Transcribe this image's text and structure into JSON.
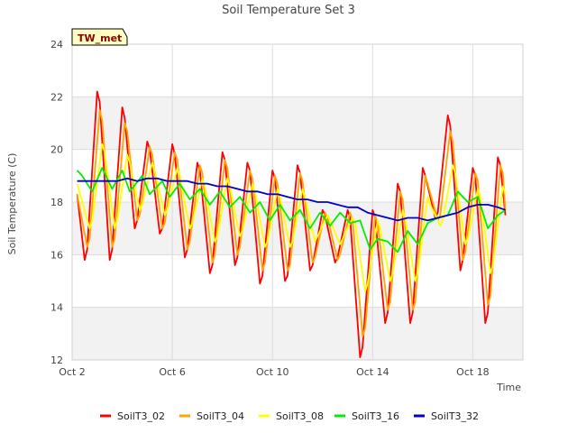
{
  "chart_data": {
    "type": "line",
    "title": "Soil Temperature Set 3",
    "xlabel": "Time",
    "ylabel": "Soil Temperature (C)",
    "xlim": [
      "Oct 2",
      "Oct 20"
    ],
    "ylim": [
      12,
      24
    ],
    "yticks": [
      12,
      14,
      16,
      18,
      20,
      22,
      24
    ],
    "xticks": [
      "Oct 2",
      "Oct 6",
      "Oct 10",
      "Oct 14",
      "Oct 18"
    ],
    "grid": true,
    "legend_position": "bottom",
    "site_badge": "TW_met",
    "x_unit": "day of October",
    "series": [
      {
        "name": "SoilT3_02",
        "color": "#ff0000",
        "x": [
          2.2,
          2.5,
          2.6,
          3.0,
          3.1,
          3.5,
          3.6,
          4.0,
          4.1,
          4.5,
          4.6,
          5.0,
          5.1,
          5.5,
          5.6,
          6.0,
          6.1,
          6.5,
          6.6,
          7.0,
          7.1,
          7.5,
          7.6,
          8.0,
          8.1,
          8.5,
          8.6,
          9.0,
          9.1,
          9.5,
          9.6,
          10.0,
          10.1,
          10.5,
          10.6,
          11.0,
          11.1,
          11.5,
          11.6,
          12.0,
          12.1,
          12.5,
          12.6,
          13.0,
          13.1,
          13.5,
          13.6,
          14.0,
          14.1,
          14.5,
          14.6,
          15.0,
          15.1,
          15.5,
          15.6,
          16.0,
          16.1,
          16.5,
          16.6,
          17.0,
          17.1,
          17.5,
          17.6,
          18.0,
          18.1,
          18.5,
          18.6,
          19.0,
          19.1,
          19.3
        ],
        "y": [
          18.3,
          15.8,
          16.2,
          22.2,
          21.8,
          15.8,
          16.2,
          21.6,
          21.2,
          17.0,
          17.3,
          20.3,
          20.0,
          16.8,
          17.0,
          20.2,
          19.8,
          15.9,
          16.2,
          19.5,
          19.2,
          15.3,
          15.6,
          19.9,
          19.6,
          15.6,
          15.9,
          19.5,
          19.2,
          14.9,
          15.2,
          19.2,
          18.9,
          15.0,
          15.2,
          19.4,
          19.1,
          15.4,
          15.6,
          17.7,
          17.5,
          15.7,
          15.9,
          17.7,
          17.4,
          12.1,
          12.5,
          17.7,
          17.4,
          13.4,
          13.8,
          18.7,
          18.4,
          13.4,
          13.8,
          19.3,
          19.0,
          17.4,
          17.6,
          21.3,
          20.9,
          15.4,
          15.8,
          19.3,
          19.0,
          13.4,
          13.8,
          19.7,
          19.4,
          17.5
        ]
      },
      {
        "name": "SoilT3_04",
        "color": "#ffa500",
        "x": [
          2.2,
          2.6,
          2.7,
          3.1,
          3.2,
          3.6,
          3.7,
          4.1,
          4.2,
          4.6,
          4.7,
          5.1,
          5.2,
          5.6,
          5.7,
          6.1,
          6.2,
          6.6,
          6.7,
          7.1,
          7.2,
          7.6,
          7.7,
          8.1,
          8.2,
          8.6,
          8.7,
          9.1,
          9.2,
          9.6,
          9.7,
          10.1,
          10.2,
          10.6,
          10.7,
          11.1,
          11.2,
          11.6,
          11.7,
          12.1,
          12.2,
          12.6,
          12.7,
          13.1,
          13.2,
          13.6,
          13.7,
          14.1,
          14.2,
          14.6,
          14.7,
          15.1,
          15.2,
          15.6,
          15.7,
          16.1,
          16.2,
          16.6,
          16.7,
          17.1,
          17.2,
          17.6,
          17.7,
          18.1,
          18.2,
          18.6,
          18.7,
          19.1,
          19.2,
          19.3
        ],
        "y": [
          18.3,
          16.3,
          16.6,
          21.5,
          21.1,
          16.3,
          16.6,
          21.0,
          20.7,
          17.3,
          17.5,
          20.1,
          19.8,
          17.0,
          17.2,
          19.9,
          19.6,
          16.2,
          16.5,
          19.4,
          19.1,
          15.7,
          16.0,
          19.6,
          19.3,
          16.0,
          16.3,
          19.2,
          18.9,
          15.4,
          15.7,
          19.0,
          18.7,
          15.4,
          15.6,
          19.1,
          18.8,
          15.7,
          15.9,
          17.6,
          17.4,
          15.8,
          16.0,
          17.6,
          17.3,
          12.9,
          13.2,
          17.5,
          17.2,
          13.9,
          14.2,
          18.4,
          18.1,
          13.9,
          14.2,
          19.0,
          18.7,
          17.3,
          17.5,
          20.7,
          20.3,
          15.8,
          16.1,
          19.1,
          18.8,
          14.1,
          14.4,
          19.4,
          19.1,
          17.7
        ]
      },
      {
        "name": "SoilT3_08",
        "color": "#ffff00",
        "x": [
          2.2,
          2.7,
          2.8,
          3.2,
          3.3,
          3.7,
          3.8,
          4.2,
          4.3,
          4.7,
          4.8,
          5.2,
          5.3,
          5.7,
          5.8,
          6.2,
          6.3,
          6.7,
          6.8,
          7.2,
          7.3,
          7.7,
          7.8,
          8.2,
          8.3,
          8.7,
          8.8,
          9.2,
          9.3,
          9.7,
          9.8,
          10.2,
          10.3,
          10.7,
          10.8,
          11.2,
          11.3,
          11.7,
          11.8,
          12.2,
          12.3,
          12.7,
          12.8,
          13.2,
          13.3,
          13.7,
          13.8,
          14.2,
          14.3,
          14.7,
          14.8,
          15.2,
          15.3,
          15.7,
          15.8,
          16.2,
          16.3,
          16.7,
          16.8,
          17.2,
          17.3,
          17.7,
          17.8,
          18.2,
          18.3,
          18.7,
          18.8,
          19.2,
          19.3
        ],
        "y": [
          18.7,
          17.0,
          17.3,
          20.2,
          19.9,
          17.0,
          17.3,
          19.8,
          19.5,
          17.7,
          17.9,
          19.5,
          19.2,
          17.5,
          17.7,
          19.3,
          19.0,
          17.0,
          17.2,
          18.9,
          18.6,
          16.5,
          16.7,
          18.9,
          18.6,
          16.7,
          16.9,
          18.7,
          18.4,
          16.3,
          16.5,
          18.5,
          18.2,
          16.3,
          16.5,
          18.5,
          18.2,
          16.5,
          16.7,
          17.5,
          17.3,
          16.4,
          16.6,
          17.4,
          17.2,
          14.6,
          14.9,
          17.3,
          17.0,
          15.0,
          15.3,
          17.7,
          17.4,
          15.0,
          15.3,
          18.2,
          17.9,
          17.1,
          17.3,
          19.4,
          19.1,
          16.4,
          16.6,
          18.5,
          18.2,
          15.3,
          15.6,
          18.6,
          18.3
        ]
      },
      {
        "name": "SoilT3_16",
        "color": "#00ee00",
        "x": [
          2.2,
          2.4,
          2.8,
          3.2,
          3.6,
          4.0,
          4.3,
          4.8,
          5.1,
          5.6,
          5.9,
          6.3,
          6.7,
          7.1,
          7.5,
          7.9,
          8.3,
          8.7,
          9.1,
          9.5,
          9.9,
          10.3,
          10.7,
          11.1,
          11.5,
          11.9,
          12.3,
          12.7,
          13.1,
          13.5,
          13.9,
          14.2,
          14.6,
          15.0,
          15.4,
          15.8,
          16.2,
          16.6,
          17.0,
          17.4,
          17.8,
          18.2,
          18.6,
          19.0,
          19.3
        ],
        "y": [
          19.2,
          19.0,
          18.4,
          19.3,
          18.5,
          19.2,
          18.4,
          19.0,
          18.3,
          18.8,
          18.2,
          18.7,
          18.1,
          18.5,
          17.9,
          18.4,
          17.8,
          18.2,
          17.6,
          18.0,
          17.3,
          17.9,
          17.3,
          17.7,
          17.0,
          17.6,
          17.1,
          17.6,
          17.2,
          17.3,
          16.2,
          16.6,
          16.5,
          16.1,
          16.9,
          16.4,
          17.2,
          17.4,
          17.5,
          18.4,
          18.0,
          18.2,
          17.0,
          17.5,
          17.7
        ]
      },
      {
        "name": "SoilT3_32",
        "color": "#0000cc",
        "x": [
          2.2,
          2.6,
          3.0,
          3.4,
          3.8,
          4.2,
          4.6,
          5.0,
          5.4,
          5.8,
          6.2,
          6.6,
          7.0,
          7.4,
          7.8,
          8.2,
          8.6,
          9.0,
          9.4,
          9.8,
          10.2,
          10.6,
          11.0,
          11.4,
          11.8,
          12.2,
          12.6,
          13.0,
          13.4,
          13.8,
          14.2,
          14.6,
          15.0,
          15.4,
          15.8,
          16.2,
          16.6,
          17.0,
          17.4,
          17.8,
          18.2,
          18.6,
          19.0,
          19.3
        ],
        "y": [
          18.8,
          18.8,
          18.8,
          18.8,
          18.8,
          18.9,
          18.8,
          18.9,
          18.9,
          18.8,
          18.8,
          18.8,
          18.7,
          18.7,
          18.6,
          18.6,
          18.5,
          18.4,
          18.4,
          18.3,
          18.3,
          18.2,
          18.1,
          18.1,
          18.0,
          18.0,
          17.9,
          17.8,
          17.8,
          17.6,
          17.5,
          17.4,
          17.3,
          17.4,
          17.4,
          17.3,
          17.4,
          17.5,
          17.6,
          17.8,
          17.9,
          17.9,
          17.8,
          17.7
        ]
      }
    ]
  }
}
